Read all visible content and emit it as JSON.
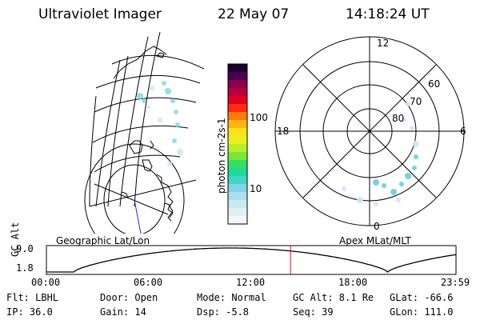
{
  "header": {
    "title": "Ultraviolet Imager",
    "date": "22 May 07",
    "time": "14:18:24 UT"
  },
  "colorbar": {
    "unit": "photon cm-2s-1",
    "ticks": [
      "100",
      "10"
    ],
    "colors": [
      "#f2f8fa",
      "#e2eff5",
      "#c9e8f0",
      "#aadff0",
      "#7fd4e6",
      "#3fd6c8",
      "#1fd99a",
      "#33e060",
      "#7ce638",
      "#b8ee28",
      "#e8f020",
      "#ffe01a",
      "#ffb510",
      "#ff7a0a",
      "#ff2a10",
      "#e00020",
      "#b8003a",
      "#8a0050",
      "#4c0050",
      "#1a0030"
    ]
  },
  "geo_panel": {
    "label": "Geographic Lat/Lon"
  },
  "polar_panel": {
    "label": "Apex MLat/MLT",
    "mlt_labels": {
      "top": "12",
      "left": "18",
      "right": "6",
      "bottom": "0"
    },
    "lat_labels": [
      "60",
      "70",
      "80"
    ]
  },
  "altitude_plot": {
    "ylabel": "GC Alt",
    "yticks": [
      "9.0",
      "1.8"
    ],
    "xticks": [
      "00:00",
      "06:00",
      "12:00",
      "18:00",
      "23:59"
    ],
    "current_time_hours": 14.3,
    "marker_color": "#d01020"
  },
  "params": {
    "flt": "Flt: LBHL",
    "ip": "IP: 36.0",
    "door": "Door: Open",
    "gain": "Gain: 14",
    "mode": "Mode: Normal",
    "dsp": "Dsp:   -5.8",
    "gcalt": "GC Alt: 8.1 Re",
    "seq": "Seq: 39",
    "glat": "GLat: -66.6",
    "glon": "GLon: 111.0"
  }
}
